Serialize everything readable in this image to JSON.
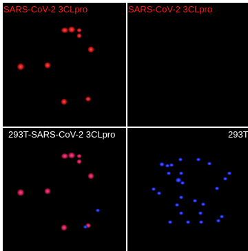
{
  "panels": {
    "top_left": {
      "label": "SARS-CoV-2 3CLpro"
    },
    "top_right": {
      "label": "SARS-CoV-2 3CLpro"
    },
    "bottom_left": {
      "label": "293T-SARS-CoV-2 3CLpro"
    },
    "bottom_right": {
      "label": "293T"
    }
  },
  "colors": {
    "red_cell": "#d42020",
    "red_core": "#ff4040",
    "magenta_cell": "#c8208c",
    "blue_nucleus": "#2430ff"
  }
}
